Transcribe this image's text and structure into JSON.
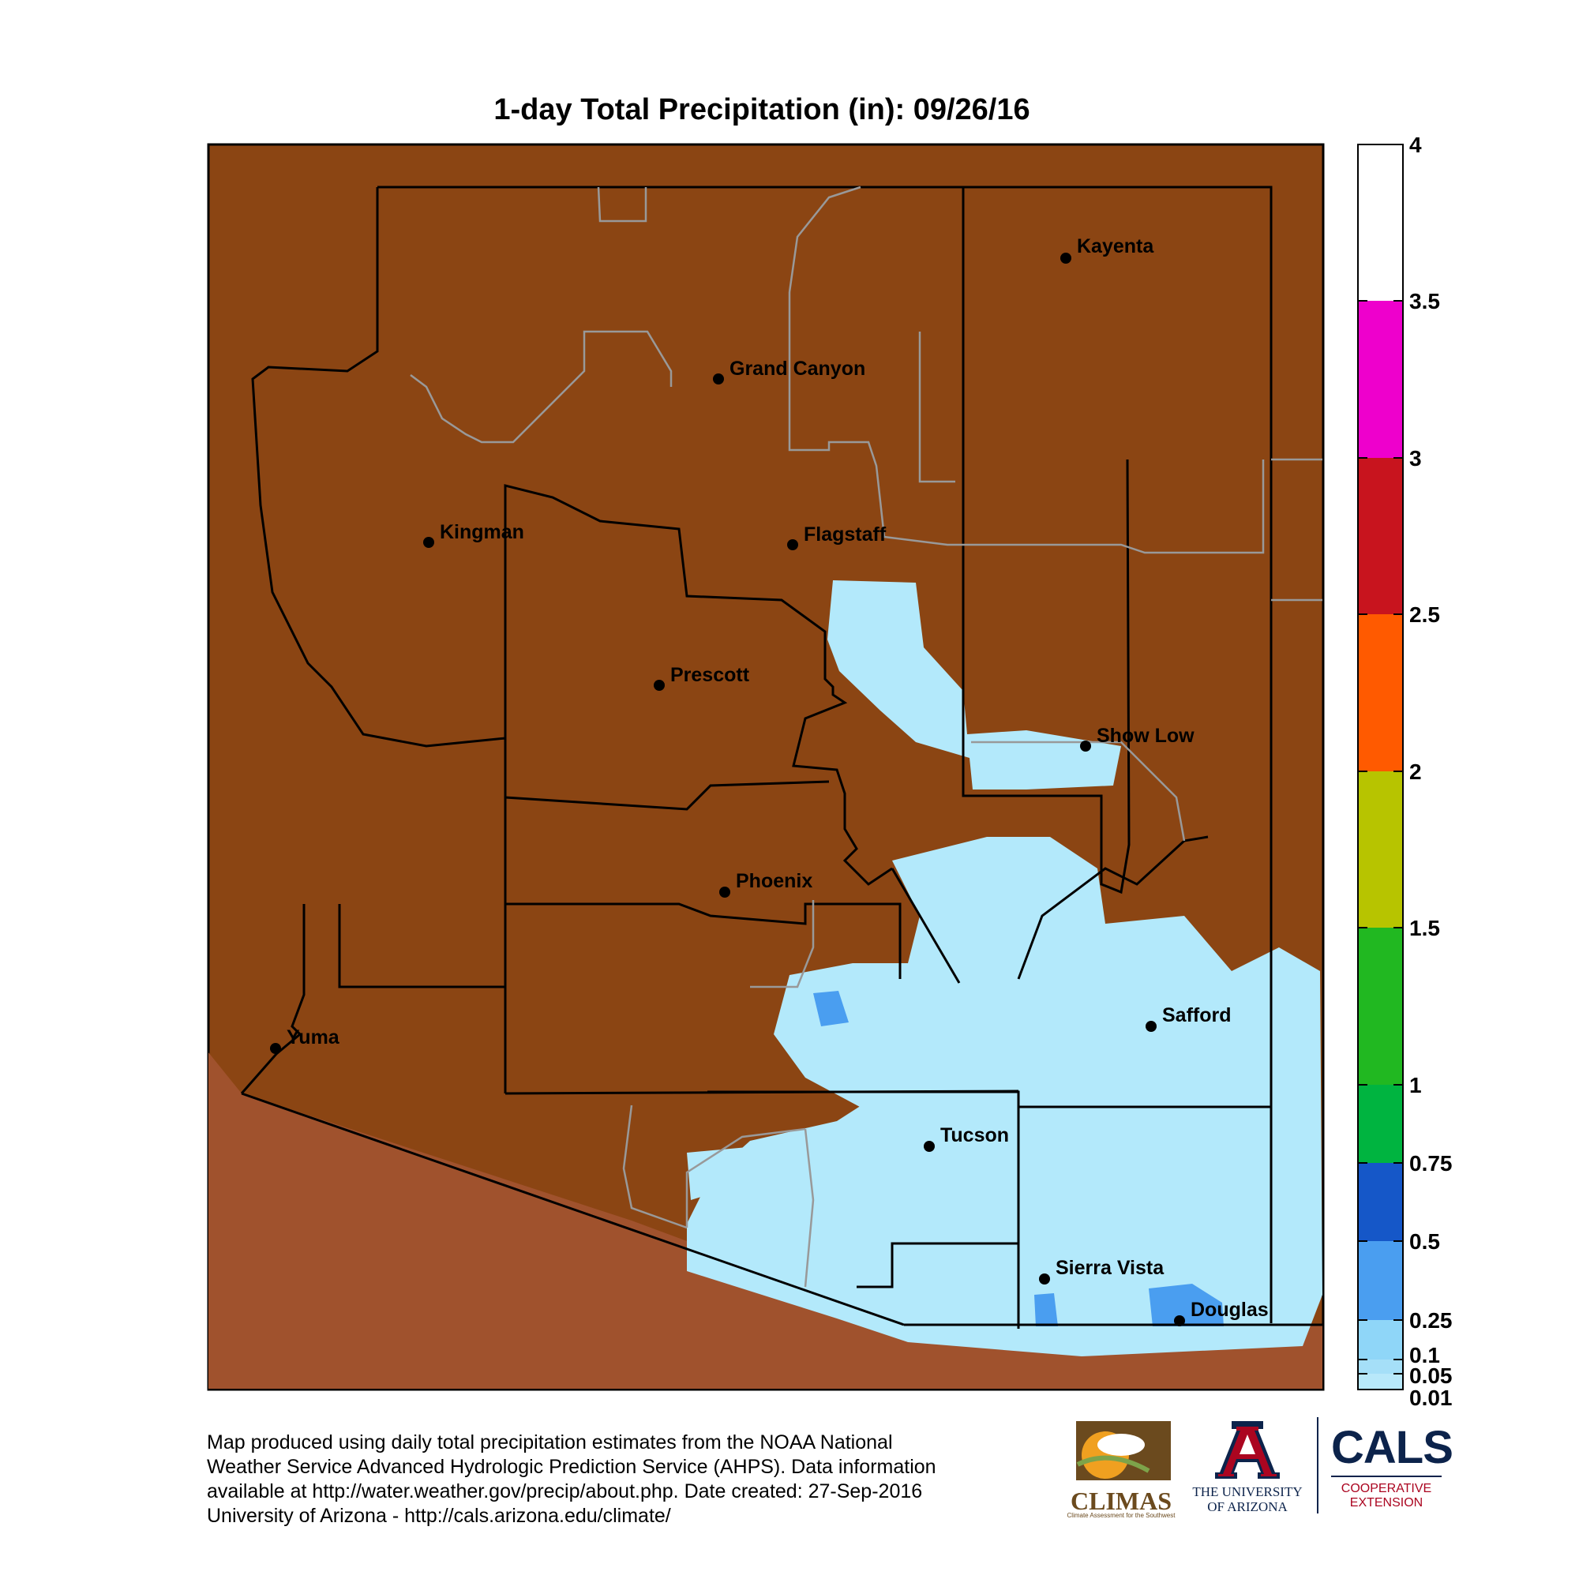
{
  "title": "1-day Total Precipitation (in): 09/26/16",
  "map": {
    "background_color": "#8B4513",
    "outside_state_color": "#A0522D",
    "cities": [
      {
        "name": "Kayenta"
      },
      {
        "name": "Grand Canyon"
      },
      {
        "name": "Kingman"
      },
      {
        "name": "Flagstaff"
      },
      {
        "name": "Prescott"
      },
      {
        "name": "Show Low"
      },
      {
        "name": "Phoenix"
      },
      {
        "name": "Safford"
      },
      {
        "name": "Yuma"
      },
      {
        "name": "Tucson"
      },
      {
        "name": "Sierra Vista"
      },
      {
        "name": "Douglas"
      }
    ]
  },
  "colorbar": {
    "ticks": [
      "4",
      "3.5",
      "3",
      "2.5",
      "2",
      "1.5",
      "1",
      "0.75",
      "0.5",
      "0.25",
      "0.1",
      "0.05",
      "0.01"
    ],
    "bands": [
      {
        "from": "3.5",
        "to": "4",
        "color": "#FFFFFF"
      },
      {
        "from": "3",
        "to": "3.5",
        "color": "#EE00CC"
      },
      {
        "from": "2.5",
        "to": "3",
        "color": "#C8141E"
      },
      {
        "from": "2",
        "to": "2.5",
        "color": "#FF5A00"
      },
      {
        "from": "1.5",
        "to": "2",
        "color": "#B7C400"
      },
      {
        "from": "1",
        "to": "1.5",
        "color": "#21B821"
      },
      {
        "from": "0.75",
        "to": "1",
        "color": "#00B440"
      },
      {
        "from": "0.5",
        "to": "0.75",
        "color": "#1557C8"
      },
      {
        "from": "0.25",
        "to": "0.5",
        "color": "#4A9EF0"
      },
      {
        "from": "0.1",
        "to": "0.25",
        "color": "#8FD6F8"
      },
      {
        "from": "0.05",
        "to": "0.1",
        "color": "#A5DFF8"
      },
      {
        "from": "0.01",
        "to": "0.05",
        "color": "#B8E8FA"
      }
    ]
  },
  "footer": {
    "lines": [
      "Map produced using daily total precipitation estimates from the NOAA National",
      "Weather Service Advanced Hydrologic Prediction Service (AHPS). Data information",
      "available at http://water.weather.gov/precip/about.php. Date created: 27-Sep-2016",
      "University of Arizona - http://cals.arizona.edu/climate/"
    ]
  },
  "logos": {
    "climas": "CLIMAS",
    "climas_sub": "Climate Assessment for the Southwest",
    "ua_line1": "THE UNIVERSITY",
    "ua_line2": "OF ARIZONA",
    "cals": "CALS",
    "cals_sub1": "COOPERATIVE",
    "cals_sub2": "EXTENSION"
  }
}
